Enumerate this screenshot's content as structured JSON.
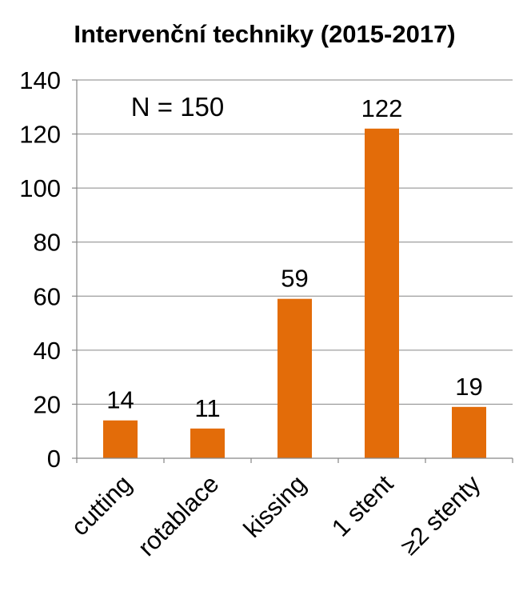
{
  "chart_data": {
    "type": "bar",
    "title": "Intervenční techniky (2015-2017)",
    "annotation": "N = 150",
    "categories": [
      "cutting",
      "rotablace",
      "kissing",
      "1 stent",
      "≥2 stenty"
    ],
    "values": [
      14,
      11,
      59,
      122,
      19
    ],
    "data_labels": [
      "14",
      "11",
      "59",
      "122",
      "19"
    ],
    "ylim": [
      0,
      140
    ],
    "yticks": [
      0,
      20,
      40,
      60,
      80,
      100,
      120,
      140
    ],
    "ytick_labels": [
      "0",
      "20",
      "40",
      "60",
      "80",
      "100",
      "120",
      "140"
    ],
    "xlabel": "",
    "ylabel": "",
    "grid": true,
    "bar_color": "#E36C09",
    "category_label_rotation_deg": -45
  }
}
